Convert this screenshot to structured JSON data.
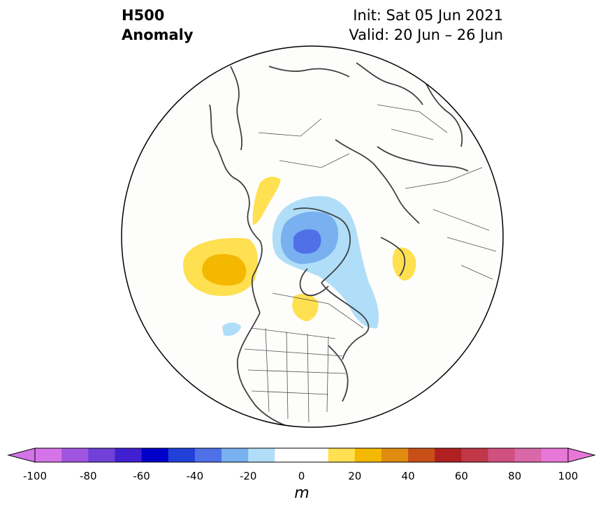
{
  "title": {
    "left_line1": "H500",
    "left_line2": "Anomaly",
    "right_line1": "Init: Sat 05 Jun 2021",
    "right_line2": "Valid: 20 Jun – 26 Jun"
  },
  "colorbar": {
    "units": "m",
    "min": -100,
    "max": 100,
    "step": 10,
    "tick_labels": [
      "-100",
      "-80",
      "-60",
      "-40",
      "-20",
      "0",
      "20",
      "40",
      "60",
      "80",
      "100"
    ],
    "colors": [
      "#d474e8",
      "#a055e0",
      "#7040d8",
      "#4020d0",
      "#0000c8",
      "#2040d8",
      "#5070e8",
      "#78b0f0",
      "#b0def8",
      "#ffffff",
      "#ffffff",
      "#ffe050",
      "#f4b800",
      "#e08c10",
      "#c85018",
      "#b02020",
      "#c03848",
      "#d05080",
      "#d868a8",
      "#e878d8"
    ],
    "extend_low_color": "#d474e8",
    "extend_high_color": "#e878d8"
  },
  "map": {
    "projection": "north-polar-stereographic",
    "anomaly_features": [
      {
        "label": "negative anomaly over Arctic/Greenland",
        "value_m": -40
      },
      {
        "label": "positive anomaly NE Pacific / Alaska",
        "value_m": 20
      },
      {
        "label": "positive anomaly central Canada",
        "value_m": 10
      },
      {
        "label": "positive anomaly Siberia",
        "value_m": 10
      },
      {
        "label": "positive anomaly Scandinavia region",
        "value_m": 10
      }
    ]
  }
}
